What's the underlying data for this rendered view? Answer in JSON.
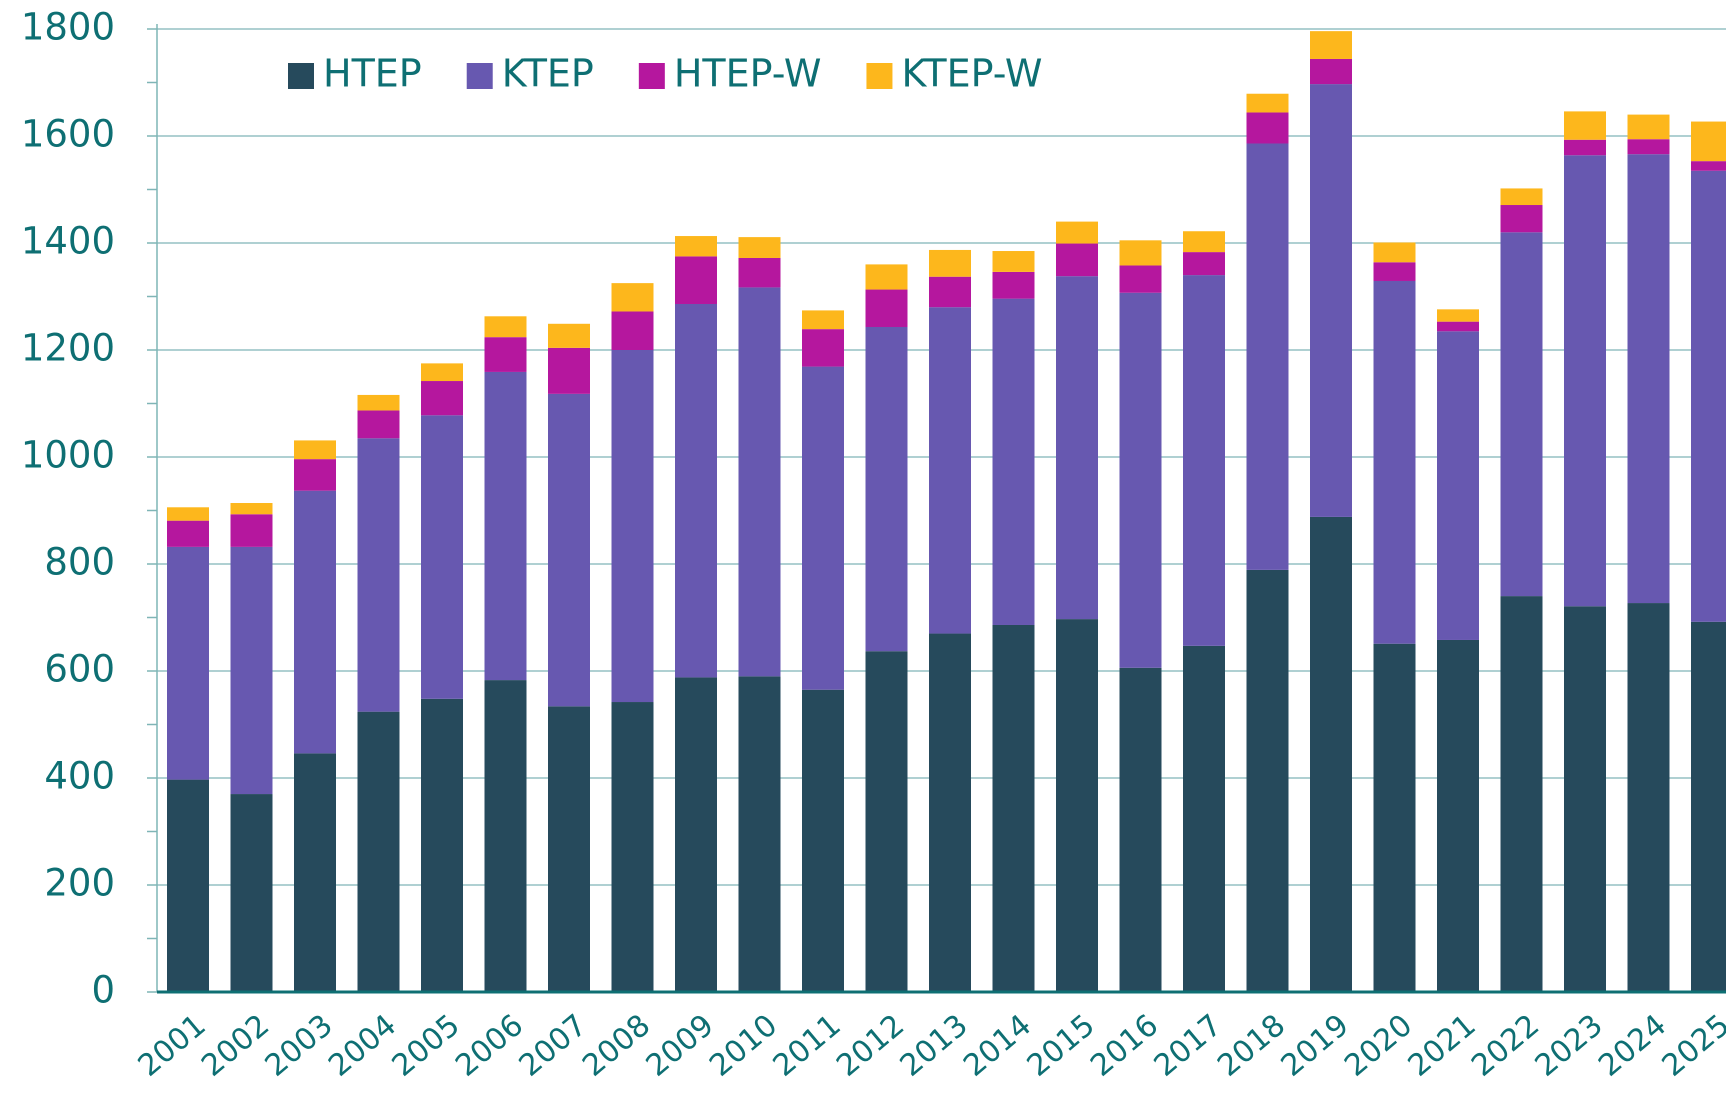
{
  "chart_data": {
    "type": "stacked_bar",
    "categories": [
      "2001",
      "2002",
      "2003",
      "2004",
      "2005",
      "2006",
      "2007",
      "2008",
      "2009",
      "2010",
      "2011",
      "2012",
      "2013",
      "2014",
      "2015",
      "2016",
      "2017",
      "2018",
      "2019",
      "2020",
      "2021",
      "2022",
      "2023",
      "2024",
      "2025"
    ],
    "series": [
      {
        "name": "HTEP",
        "color": "#264a5c",
        "values": [
          397,
          370,
          446,
          524,
          548,
          583,
          534,
          542,
          588,
          590,
          565,
          637,
          670,
          686,
          697,
          606,
          647,
          789,
          888,
          651,
          658,
          740,
          721,
          727,
          692
        ]
      },
      {
        "name": "KTEP",
        "color": "#6758b0",
        "values": [
          435,
          462,
          491,
          511,
          530,
          576,
          584,
          658,
          698,
          727,
          604,
          606,
          610,
          610,
          641,
          701,
          693,
          797,
          809,
          678,
          577,
          680,
          843,
          839,
          843
        ]
      },
      {
        "name": "HTEP-W",
        "color": "#b5179e",
        "values": [
          49,
          61,
          59,
          52,
          64,
          65,
          86,
          72,
          89,
          55,
          70,
          70,
          57,
          50,
          61,
          51,
          43,
          58,
          47,
          35,
          18,
          51,
          29,
          28,
          18
        ]
      },
      {
        "name": "KTEP-W",
        "color": "#fdb71c",
        "values": [
          25,
          21,
          35,
          29,
          33,
          39,
          45,
          53,
          38,
          39,
          35,
          47,
          50,
          39,
          41,
          47,
          39,
          35,
          52,
          37,
          23,
          31,
          53,
          46,
          74
        ]
      }
    ],
    "ylim": [
      0,
      1800
    ],
    "yticks": [
      0,
      200,
      400,
      600,
      800,
      1000,
      1200,
      1400,
      1600,
      1800
    ],
    "yminor_ticks": [
      100,
      300,
      500,
      700,
      900,
      1100,
      1300,
      1500,
      1700
    ],
    "grid": true,
    "legend": "top-left"
  }
}
